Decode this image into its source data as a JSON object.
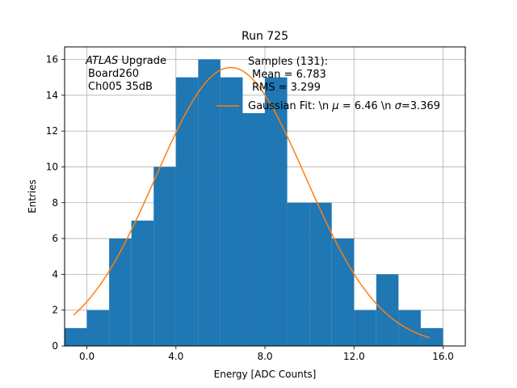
{
  "chart_data": {
    "type": "histogram",
    "title": "Run 725",
    "xlabel": "Energy [ADC Counts]",
    "ylabel": "Entries",
    "xlim": [
      -1.0,
      17.0
    ],
    "ylim": [
      0,
      16.7
    ],
    "grid": true,
    "x_ticks": [
      0,
      4,
      8,
      12,
      16
    ],
    "x_tick_labels": [
      "0.0",
      "4.0",
      "8.0",
      "12.0",
      "16.0"
    ],
    "y_ticks": [
      0,
      2,
      4,
      6,
      8,
      10,
      12,
      14,
      16
    ],
    "y_tick_labels": [
      "0",
      "2",
      "4",
      "6",
      "8",
      "10",
      "12",
      "14",
      "16"
    ],
    "bin_edges": [
      -1,
      0,
      1,
      2,
      3,
      4,
      5,
      6,
      7,
      8,
      9,
      10,
      11,
      12,
      13,
      14,
      15,
      16
    ],
    "counts": [
      1,
      2,
      6,
      7,
      10,
      15,
      16,
      15,
      13,
      15,
      8,
      8,
      6,
      2,
      4,
      2,
      1
    ],
    "fit": {
      "name": "Gaussian Fit",
      "mu": 6.46,
      "sigma": 3.369,
      "amplitude": 15.55,
      "x_range": [
        -0.6,
        15.4
      ]
    },
    "colors": {
      "bars": "#1f77b4",
      "fit": "#ff7f0e",
      "grid": "#b0b0b0"
    },
    "annotation": {
      "atlas": "ATLAS",
      "upgrade": "Upgrade",
      "line2": "Board260",
      "line3": "Ch005 35dB"
    },
    "legend": {
      "location": "top-right",
      "samples_header": "Samples (131):",
      "mean": "Mean = 6.783",
      "rms": "RMS = 3.299",
      "fit_prefix": "Gaussian Fit: \\n ",
      "mu_symbol": "μ",
      "fit_mid": " = 6.46 \\n ",
      "sigma_symbol": "σ",
      "fit_suffix": "=3.369"
    }
  }
}
